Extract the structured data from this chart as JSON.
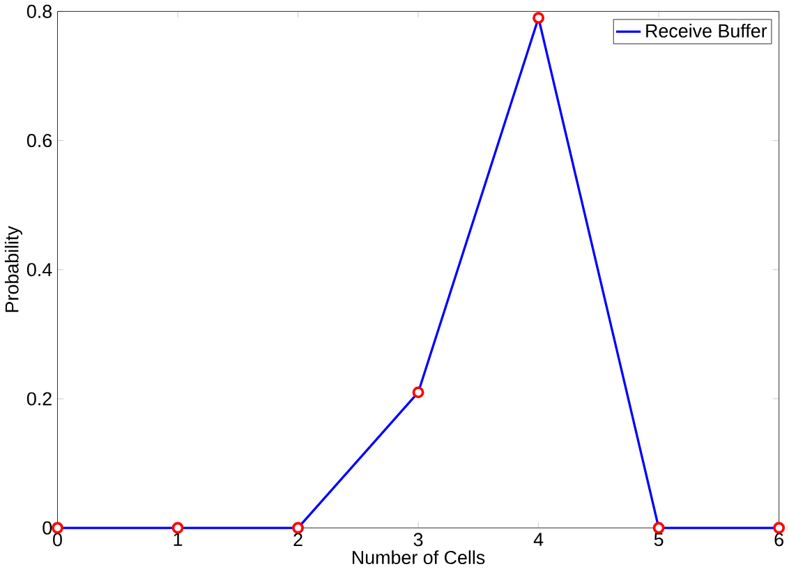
{
  "chart_data": {
    "type": "line",
    "xlabel": "Number of Cells",
    "ylabel": "Probability",
    "x": [
      0,
      1,
      2,
      3,
      4,
      5,
      6
    ],
    "xlim": [
      0,
      6
    ],
    "xticks": [
      0,
      1,
      2,
      3,
      4,
      5,
      6
    ],
    "ylim": [
      0,
      0.8
    ],
    "yticks": [
      0,
      0.2,
      0.4,
      0.6,
      0.8
    ],
    "legend": "top right",
    "series": [
      {
        "name": "Receive Buffer",
        "color": "#0000ff",
        "values": [
          0,
          0,
          0,
          0.21,
          0.79,
          0,
          0
        ]
      },
      {
        "type": "scatter",
        "color": "#ff0000",
        "values": [
          0,
          0,
          0,
          0.21,
          0.79,
          0,
          0
        ],
        "marker": "circle"
      }
    ]
  }
}
